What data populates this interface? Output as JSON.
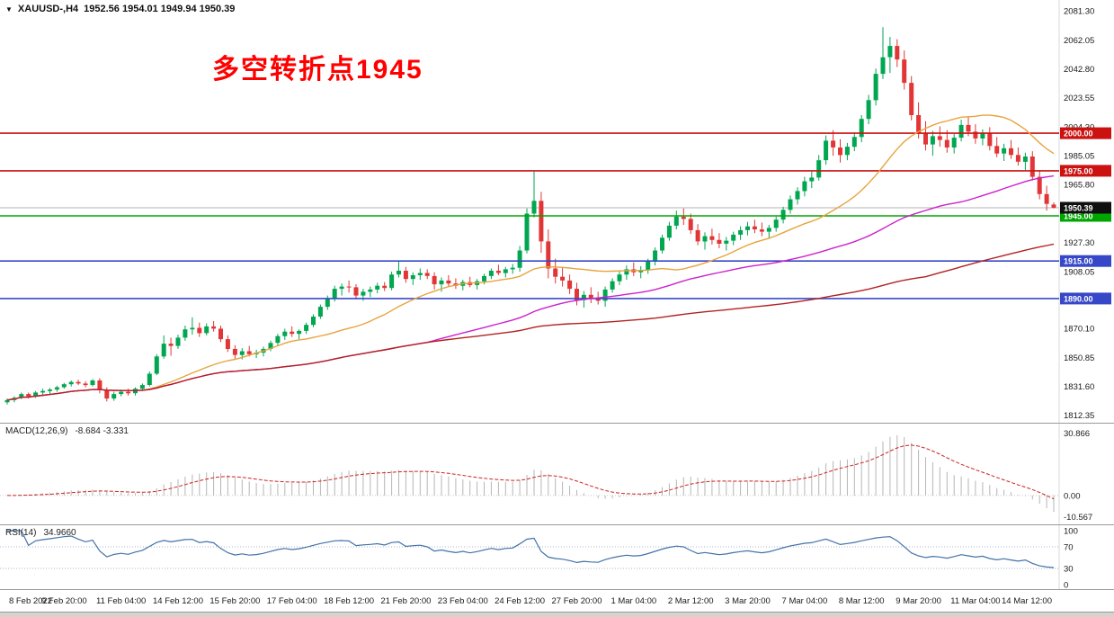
{
  "header": {
    "collapse_icon": "▼",
    "symbol": "XAUUSD-,H4",
    "ohlc": "1952.56 1954.01 1949.94 1950.39"
  },
  "chart_data": [
    {
      "type": "candlestick",
      "title": "XAUUSD- H4",
      "timeframe": "H4",
      "annotation": {
        "text": "多空转折点1945",
        "color": "#ff0000"
      },
      "colors": {
        "bull": "#00a650",
        "bear": "#e23535"
      },
      "y_axis": {
        "min": 1811,
        "max": 2085,
        "ticks": [
          "2081.30",
          "2062.05",
          "2042.80",
          "2023.55",
          "2004.30",
          "1985.05",
          "1965.80",
          "1927.30",
          "1908.05",
          "1870.10",
          "1850.85",
          "1831.60",
          "1812.35"
        ]
      },
      "current_price": {
        "value": 1950.39,
        "label": "1950.39",
        "box_color": "#101010"
      },
      "levels": [
        {
          "price": 2000.0,
          "label": "2000.00",
          "color": "#cc1111"
        },
        {
          "price": 1975.0,
          "label": "1975.00",
          "color": "#cc1111"
        },
        {
          "price": 1945.0,
          "label": "1945.00",
          "color": "#00a600"
        },
        {
          "price": 1915.0,
          "label": "1915.00",
          "color": "#3648c8"
        },
        {
          "price": 1890.0,
          "label": "1890.00",
          "color": "#3648c8"
        }
      ],
      "moving_averages": [
        {
          "name": "fast",
          "period": 20,
          "color": "#e8a33d"
        },
        {
          "name": "medium",
          "period": 60,
          "color": "#cc22cc"
        },
        {
          "name": "slow",
          "period": 130,
          "color": "#b22222"
        }
      ],
      "x_ticks": [
        "8 Feb 2022",
        "9 Feb 20:00",
        "11 Feb 04:00",
        "14 Feb 12:00",
        "15 Feb 20:00",
        "17 Feb 04:00",
        "18 Feb 12:00",
        "21 Feb 20:00",
        "23 Feb 04:00",
        "24 Feb 12:00",
        "27 Feb 20:00",
        "1 Mar 04:00",
        "2 Mar 12:00",
        "3 Mar 20:00",
        "7 Mar 04:00",
        "8 Mar 12:00",
        "9 Mar 20:00",
        "11 Mar 04:00",
        "14 Mar 12:00"
      ],
      "candles": [
        [
          1821,
          1823.5,
          1819.5,
          1822.5
        ],
        [
          1822.5,
          1825,
          1821,
          1824
        ],
        [
          1824,
          1827.5,
          1823,
          1826.5
        ],
        [
          1826.5,
          1827.5,
          1823.5,
          1825
        ],
        [
          1825,
          1828.5,
          1824,
          1827.5
        ],
        [
          1827.5,
          1830,
          1826,
          1828.5
        ],
        [
          1828.5,
          1830.5,
          1826.5,
          1829.5
        ],
        [
          1829.5,
          1832,
          1828,
          1831
        ],
        [
          1831,
          1834,
          1830,
          1833
        ],
        [
          1833,
          1835.5,
          1831.5,
          1834.5
        ],
        [
          1834.5,
          1836,
          1832.5,
          1833.5
        ],
        [
          1833.5,
          1835,
          1831,
          1832.5
        ],
        [
          1832.5,
          1836.5,
          1831.5,
          1835.5
        ],
        [
          1835.5,
          1837,
          1827,
          1829
        ],
        [
          1829,
          1831,
          1821.5,
          1823.5
        ],
        [
          1823.5,
          1828,
          1822,
          1826.5
        ],
        [
          1826.5,
          1829.5,
          1825,
          1828
        ],
        [
          1828,
          1830,
          1825.5,
          1827
        ],
        [
          1827,
          1831,
          1825.5,
          1830
        ],
        [
          1830,
          1833.5,
          1828.5,
          1832.5
        ],
        [
          1832.5,
          1841.5,
          1831.5,
          1840
        ],
        [
          1840,
          1853,
          1839,
          1851.5
        ],
        [
          1851.5,
          1865.5,
          1850,
          1860
        ],
        [
          1860,
          1864,
          1852,
          1858.5
        ],
        [
          1858.5,
          1866,
          1856.5,
          1864
        ],
        [
          1864,
          1872,
          1862,
          1869.5
        ],
        [
          1869.5,
          1877.5,
          1866,
          1870.5
        ],
        [
          1870.5,
          1874,
          1864.5,
          1867
        ],
        [
          1867,
          1873.5,
          1865.5,
          1871.5
        ],
        [
          1871.5,
          1875,
          1868,
          1870
        ],
        [
          1870,
          1872,
          1861,
          1863
        ],
        [
          1863,
          1865.5,
          1854.5,
          1856.5
        ],
        [
          1856.5,
          1859,
          1850,
          1852.5
        ],
        [
          1852.5,
          1857,
          1849.5,
          1855
        ],
        [
          1855,
          1858.5,
          1851.5,
          1853
        ],
        [
          1853,
          1856,
          1850.5,
          1854
        ],
        [
          1854,
          1858,
          1851.5,
          1856.5
        ],
        [
          1856.5,
          1862,
          1855,
          1860.5
        ],
        [
          1860.5,
          1866.5,
          1858.5,
          1865
        ],
        [
          1865,
          1870,
          1862.5,
          1868
        ],
        [
          1868,
          1871.5,
          1864.5,
          1866.5
        ],
        [
          1866.5,
          1869.5,
          1863,
          1868.5
        ],
        [
          1868.5,
          1874,
          1866.5,
          1872.5
        ],
        [
          1872.5,
          1879.5,
          1871,
          1878
        ],
        [
          1878,
          1886,
          1876.5,
          1884.5
        ],
        [
          1884.5,
          1892,
          1882.5,
          1890
        ],
        [
          1890,
          1898.5,
          1888,
          1896.5
        ],
        [
          1896.5,
          1900,
          1892,
          1898
        ],
        [
          1898,
          1902,
          1894,
          1897.5
        ],
        [
          1897.5,
          1899.5,
          1889.5,
          1892
        ],
        [
          1892,
          1896.5,
          1888.5,
          1894.5
        ],
        [
          1894.5,
          1898,
          1891,
          1896
        ],
        [
          1896,
          1900.5,
          1893.5,
          1898.5
        ],
        [
          1898.5,
          1901,
          1895,
          1897
        ],
        [
          1897,
          1908,
          1895.5,
          1906
        ],
        [
          1906,
          1914.5,
          1904,
          1908.5
        ],
        [
          1908.5,
          1911,
          1900.5,
          1903
        ],
        [
          1903,
          1907.5,
          1899,
          1905.5
        ],
        [
          1905.5,
          1910,
          1902.5,
          1907
        ],
        [
          1907,
          1909.5,
          1903,
          1905
        ],
        [
          1905,
          1907.5,
          1896,
          1899.5
        ],
        [
          1899.5,
          1904,
          1894.5,
          1902
        ],
        [
          1902,
          1905.5,
          1898,
          1900
        ],
        [
          1900,
          1903.5,
          1896.5,
          1898.5
        ],
        [
          1898.5,
          1902.5,
          1895.5,
          1901
        ],
        [
          1901,
          1904.5,
          1897.5,
          1899
        ],
        [
          1899,
          1903,
          1896,
          1901.5
        ],
        [
          1901.5,
          1906.5,
          1899.5,
          1905
        ],
        [
          1905,
          1910,
          1903,
          1908.5
        ],
        [
          1908.5,
          1912.5,
          1905.5,
          1907
        ],
        [
          1907,
          1911,
          1904,
          1909.5
        ],
        [
          1909.5,
          1913,
          1906.5,
          1910.5
        ],
        [
          1910.5,
          1925,
          1908,
          1922
        ],
        [
          1922,
          1950,
          1920,
          1946.5
        ],
        [
          1946.5,
          1974.5,
          1944,
          1955
        ],
        [
          1955,
          1961,
          1920.5,
          1928
        ],
        [
          1928,
          1936,
          1903.5,
          1910
        ],
        [
          1910,
          1916.5,
          1900,
          1904.5
        ],
        [
          1904.5,
          1910.5,
          1898,
          1902
        ],
        [
          1902,
          1906,
          1893,
          1896.5
        ],
        [
          1896.5,
          1900.5,
          1885.5,
          1889
        ],
        [
          1889,
          1895,
          1884,
          1892.5
        ],
        [
          1892.5,
          1897.5,
          1887,
          1890
        ],
        [
          1890,
          1894.5,
          1886,
          1888.5
        ],
        [
          1888.5,
          1898,
          1884.5,
          1896
        ],
        [
          1896,
          1903.5,
          1894,
          1901.5
        ],
        [
          1901.5,
          1908.5,
          1899,
          1906
        ],
        [
          1906,
          1912,
          1902.5,
          1909.5
        ],
        [
          1909.5,
          1914,
          1905,
          1907.5
        ],
        [
          1907.5,
          1911.5,
          1903.5,
          1909
        ],
        [
          1909,
          1916.5,
          1906.5,
          1914.5
        ],
        [
          1914.5,
          1924,
          1912,
          1922
        ],
        [
          1922,
          1932.5,
          1920,
          1930.5
        ],
        [
          1930.5,
          1941,
          1928.5,
          1938.5
        ],
        [
          1938.5,
          1948.5,
          1936,
          1944.5
        ],
        [
          1944.5,
          1950,
          1939,
          1943
        ],
        [
          1943,
          1946.5,
          1933,
          1935.5
        ],
        [
          1935.5,
          1939.5,
          1925.5,
          1928
        ],
        [
          1928,
          1934,
          1922.5,
          1931.5
        ],
        [
          1931.5,
          1936.5,
          1926,
          1929
        ],
        [
          1929,
          1933.5,
          1923.5,
          1926.5
        ],
        [
          1926.5,
          1931,
          1922,
          1928.5
        ],
        [
          1928.5,
          1934.5,
          1925.5,
          1932.5
        ],
        [
          1932.5,
          1938,
          1929,
          1935.5
        ],
        [
          1935.5,
          1941,
          1932,
          1938
        ],
        [
          1938,
          1942.5,
          1933.5,
          1936
        ],
        [
          1936,
          1940.5,
          1931.5,
          1934.5
        ],
        [
          1934.5,
          1939,
          1930,
          1937
        ],
        [
          1937,
          1944.5,
          1934.5,
          1942.5
        ],
        [
          1942.5,
          1951,
          1940,
          1949
        ],
        [
          1949,
          1958.5,
          1946.5,
          1956
        ],
        [
          1956,
          1964,
          1952.5,
          1961.5
        ],
        [
          1961.5,
          1971,
          1958,
          1968
        ],
        [
          1968,
          1974.5,
          1963.5,
          1970.5
        ],
        [
          1970.5,
          1985.5,
          1968.5,
          1982
        ],
        [
          1982,
          1998.5,
          1979,
          1995
        ],
        [
          1995,
          2002,
          1985,
          1990.5
        ],
        [
          1990.5,
          1996,
          1980.5,
          1985.5
        ],
        [
          1985.5,
          1993.5,
          1982,
          1991
        ],
        [
          1991,
          2000.5,
          1988,
          1997.5
        ],
        [
          1997.5,
          2012,
          1994,
          2009.5
        ],
        [
          2009.5,
          2025.5,
          2006,
          2022
        ],
        [
          2022,
          2043,
          2018.5,
          2039.5
        ],
        [
          2039.5,
          2070.5,
          2036,
          2050.5
        ],
        [
          2050.5,
          2064,
          2040,
          2058
        ],
        [
          2058,
          2062.5,
          2044,
          2049
        ],
        [
          2049,
          2055,
          2029,
          2033.5
        ],
        [
          2033.5,
          2038,
          2008.5,
          2012
        ],
        [
          2012,
          2020.5,
          1996.5,
          2000
        ],
        [
          2000,
          2008,
          1988.5,
          1992.5
        ],
        [
          1992.5,
          2001.5,
          1985,
          1998
        ],
        [
          1998,
          2004.5,
          1991,
          1995.5
        ],
        [
          1995.5,
          2002,
          1987,
          1990.5
        ],
        [
          1990.5,
          1999.5,
          1986.5,
          1997
        ],
        [
          1997,
          2009,
          1994.5,
          2005.5
        ],
        [
          2005.5,
          2010.5,
          1998,
          2001
        ],
        [
          2001,
          2006,
          1993,
          1996.5
        ],
        [
          1996.5,
          2002.5,
          1992,
          2000
        ],
        [
          2000,
          2004,
          1988.5,
          1991.5
        ],
        [
          1991.5,
          1997.5,
          1984,
          1986.5
        ],
        [
          1986.5,
          1993,
          1981.5,
          1990
        ],
        [
          1990,
          1995.5,
          1983,
          1985.5
        ],
        [
          1985.5,
          1990.5,
          1978.5,
          1981
        ],
        [
          1981,
          1987,
          1975.5,
          1984.5
        ],
        [
          1984.5,
          1988,
          1968.5,
          1971
        ],
        [
          1971,
          1975.5,
          1956,
          1959.5
        ],
        [
          1959.5,
          1965,
          1948.5,
          1953
        ],
        [
          1952.56,
          1954.01,
          1949.94,
          1950.39
        ]
      ]
    },
    {
      "type": "macd-histogram",
      "label": "MACD(12,26,9)",
      "values_display": "-8.684 -3.331",
      "params": {
        "fast": 12,
        "slow": 26,
        "signal": 9
      },
      "y_ticks": [
        "30.866",
        "0.00",
        "-10.567"
      ],
      "range": [
        -12.5,
        32
      ],
      "colors": {
        "histogram": "#b6b6b6",
        "signal": "#cc2222"
      }
    },
    {
      "type": "line",
      "label": "RSI(14)",
      "value_display": "34.9660",
      "period": 14,
      "levels": [
        70,
        30
      ],
      "y_ticks": [
        "100",
        "70",
        "30",
        "0"
      ],
      "range": [
        0,
        100
      ],
      "color": "#4272a8"
    }
  ]
}
